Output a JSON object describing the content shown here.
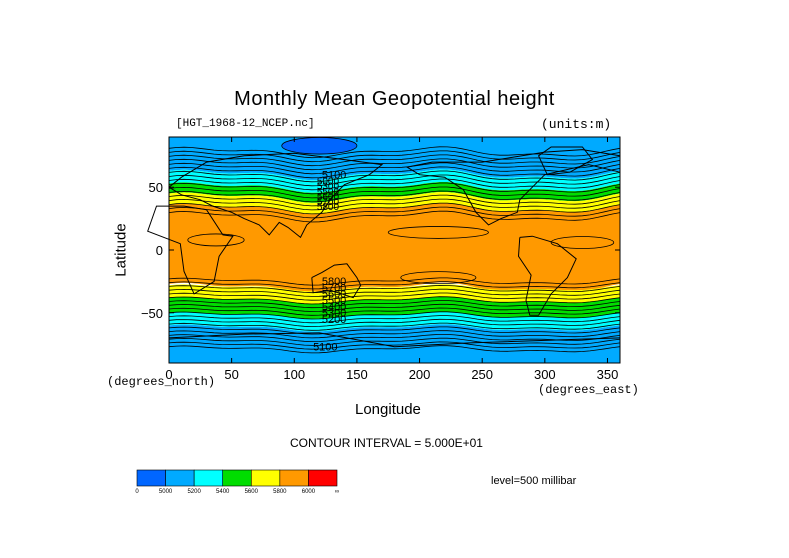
{
  "chart_data": {
    "type": "heatmap",
    "title": "Monthly Mean Geopotential height",
    "file": "[HGT_1968-12_NCEP.nc]",
    "units": "(units:m)",
    "xlabel": "Longitude",
    "ylabel": "Latitude",
    "x_units": "(degrees_east)",
    "y_units": "(degrees_north)",
    "xlim": [
      0,
      360
    ],
    "ylim": [
      -90,
      90
    ],
    "x_ticks": [
      0,
      50,
      100,
      150,
      200,
      250,
      300,
      350
    ],
    "y_ticks": [
      50,
      0,
      -50
    ],
    "y_tick_labels": [
      "50",
      "0",
      "−50"
    ],
    "contour_interval": "CONTOUR INTERVAL = 5.000E+01",
    "level": "level=500 millibar",
    "contour_labels": [
      "5100",
      "5800",
      "5700",
      "5600",
      "5500",
      "5400",
      "5300",
      "5200",
      "5100"
    ],
    "colorbar": {
      "boundaries": [
        0,
        5000,
        5200,
        5400,
        5600,
        5800,
        6000,
        "∞"
      ],
      "labels": [
        "0",
        "5000",
        "5200",
        "5400",
        "5600",
        "5800",
        "6000",
        "∞"
      ],
      "colors": [
        "#0066ff",
        "#00aaff",
        "#00ffff",
        "#00dd00",
        "#ffff00",
        "#ff9900",
        "#ff0000"
      ]
    },
    "bands": [
      {
        "lat_from": 90,
        "lat_to": 60,
        "value_range": [
          5000,
          5200
        ],
        "color": "#00aaff"
      },
      {
        "lat_from": 60,
        "lat_to": 50,
        "value_range": [
          5200,
          5400
        ],
        "color": "#00ffff"
      },
      {
        "lat_from": 50,
        "lat_to": 42,
        "value_range": [
          5400,
          5600
        ],
        "color": "#00dd00"
      },
      {
        "lat_from": 42,
        "lat_to": 33,
        "value_range": [
          5600,
          5800
        ],
        "color": "#ffff00"
      },
      {
        "lat_from": 33,
        "lat_to": -30,
        "value_range": [
          5800,
          6000
        ],
        "color": "#ff9900"
      },
      {
        "lat_from": -30,
        "lat_to": -40,
        "value_range": [
          5600,
          5800
        ],
        "color": "#ffff00"
      },
      {
        "lat_from": -40,
        "lat_to": -52,
        "value_range": [
          5400,
          5600
        ],
        "color": "#00dd00"
      },
      {
        "lat_from": -52,
        "lat_to": -62,
        "value_range": [
          5200,
          5400
        ],
        "color": "#00ffff"
      },
      {
        "lat_from": -62,
        "lat_to": -90,
        "value_range": [
          5000,
          5200
        ],
        "color": "#00aaff"
      }
    ],
    "low_center": {
      "lon": [
        90,
        150
      ],
      "lat": [
        78,
        88
      ],
      "value_range": [
        0,
        5000
      ],
      "color": "#0066ff"
    }
  }
}
